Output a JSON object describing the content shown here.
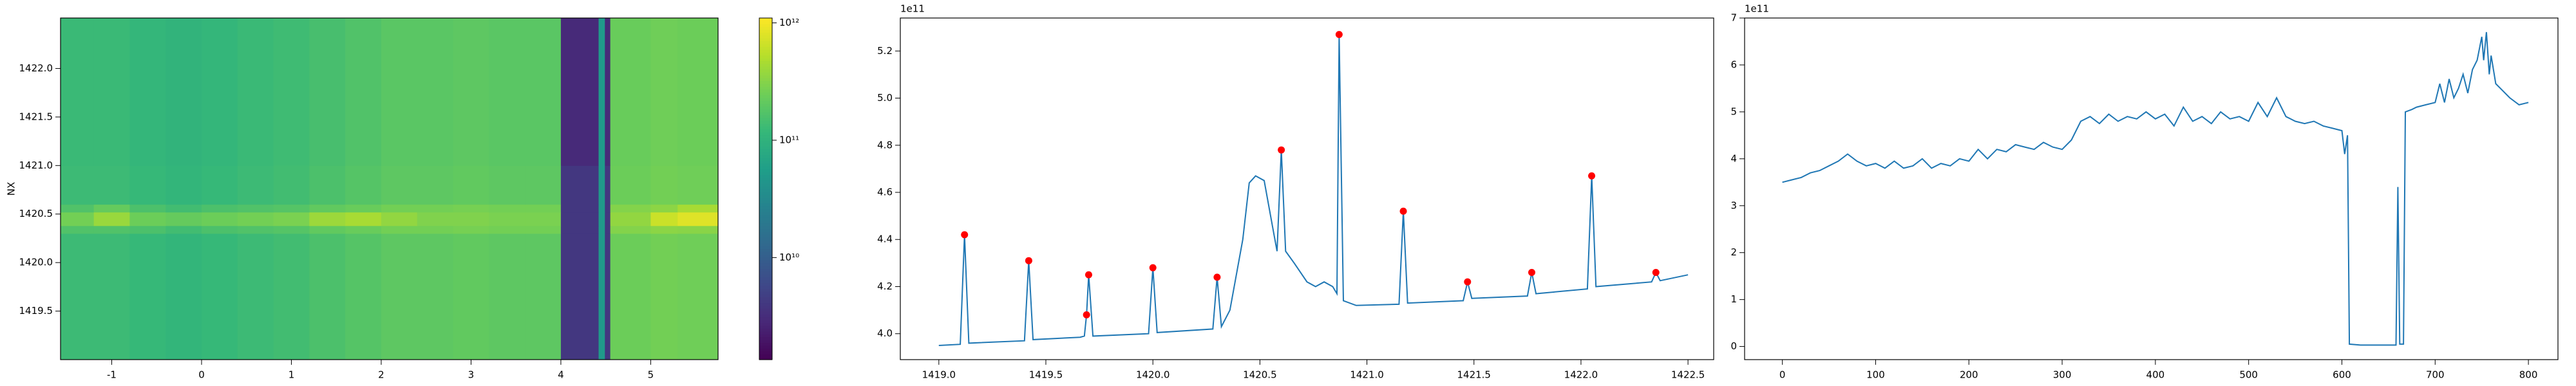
{
  "chart_data": [
    {
      "type": "heatmap",
      "ylabel": "NX",
      "x_edges": [
        -1.57,
        -1.2,
        -0.8,
        -0.4,
        0,
        0.4,
        0.8,
        1.2,
        1.6,
        2.0,
        2.4,
        2.8,
        3.2,
        3.6,
        4.0,
        4.42,
        4.49,
        4.55,
        5.0,
        5.3,
        5.75
      ],
      "y_edges": [
        1419.0,
        1420.3,
        1420.38,
        1420.52,
        1420.6,
        1421.0,
        1422.52
      ],
      "values": [
        [
          130000000000.0,
          130000000000.0,
          120000000000.0,
          110000000000.0,
          120000000000.0,
          130000000000.0,
          140000000000.0,
          160000000000.0,
          180000000000.0,
          200000000000.0,
          200000000000.0,
          210000000000.0,
          200000000000.0,
          200000000000.0,
          4000000000.0,
          50000000000.0,
          4000000000.0,
          240000000000.0,
          260000000000.0,
          250000000000.0
        ],
        [
          170000000000.0,
          170000000000.0,
          160000000000.0,
          140000000000.0,
          160000000000.0,
          170000000000.0,
          180000000000.0,
          210000000000.0,
          230000000000.0,
          260000000000.0,
          260000000000.0,
          270000000000.0,
          260000000000.0,
          260000000000.0,
          4000000000.0,
          50000000000.0,
          4000000000.0,
          310000000000.0,
          340000000000.0,
          330000000000.0
        ],
        [
          260000000000.0,
          390000000000.0,
          240000000000.0,
          220000000000.0,
          240000000000.0,
          260000000000.0,
          280000000000.0,
          400000000000.0,
          450000000000.0,
          360000000000.0,
          300000000000.0,
          300000000000.0,
          280000000000.0,
          280000000000.0,
          4000000000.0,
          50000000000.0,
          4000000000.0,
          360000000000.0,
          650000000000.0,
          800000000000.0
        ],
        [
          170000000000.0,
          220000000000.0,
          160000000000.0,
          140000000000.0,
          160000000000.0,
          170000000000.0,
          180000000000.0,
          210000000000.0,
          230000000000.0,
          260000000000.0,
          260000000000.0,
          270000000000.0,
          260000000000.0,
          260000000000.0,
          4000000000.0,
          50000000000.0,
          4000000000.0,
          310000000000.0,
          340000000000.0,
          450000000000.0
        ],
        [
          130000000000.0,
          130000000000.0,
          120000000000.0,
          110000000000.0,
          120000000000.0,
          130000000000.0,
          140000000000.0,
          160000000000.0,
          180000000000.0,
          200000000000.0,
          200000000000.0,
          210000000000.0,
          200000000000.0,
          200000000000.0,
          4000000000.0,
          50000000000.0,
          4000000000.0,
          240000000000.0,
          260000000000.0,
          250000000000.0
        ],
        [
          125000000000.0,
          125000000000.0,
          115000000000.0,
          105000000000.0,
          115000000000.0,
          125000000000.0,
          135000000000.0,
          150000000000.0,
          170000000000.0,
          190000000000.0,
          190000000000.0,
          200000000000.0,
          190000000000.0,
          190000000000.0,
          3000000000.0,
          50000000000.0,
          3000000000.0,
          230000000000.0,
          250000000000.0,
          240000000000.0
        ]
      ],
      "xlim": [
        -1.57,
        5.75
      ],
      "ylim": [
        1419.0,
        1422.52
      ],
      "xticks": [
        -1,
        0,
        1,
        2,
        3,
        4,
        5
      ],
      "yticks": [
        {
          "value": 1419.5,
          "label": "1419.5"
        },
        {
          "value": 1420,
          "label": "1420.0"
        },
        {
          "value": 1420.5,
          "label": "1420.5"
        },
        {
          "value": 1421,
          "label": "1421.0"
        },
        {
          "value": 1421.5,
          "label": "1421.5"
        },
        {
          "value": 1422,
          "label": "1422.0"
        }
      ],
      "colormap": "viridis",
      "log_scale": true,
      "clim": [
        1350000000.0,
        1100000000000.0
      ],
      "cticks": [
        {
          "value": 10000000000.0,
          "label": "10¹⁰"
        },
        {
          "value": 100000000000.0,
          "label": "10¹¹"
        },
        {
          "value": 1000000000000.0,
          "label": "10¹²"
        }
      ]
    },
    {
      "type": "line",
      "y_offset_label": "1e11",
      "color": "#1f77b4",
      "x": [
        1419.0,
        1419.1,
        1419.12,
        1419.14,
        1419.4,
        1419.42,
        1419.44,
        1419.66,
        1419.68,
        1419.69,
        1419.7,
        1419.72,
        1419.98,
        1420.0,
        1420.02,
        1420.28,
        1420.3,
        1420.32,
        1420.36,
        1420.42,
        1420.45,
        1420.48,
        1420.52,
        1420.56,
        1420.58,
        1420.6,
        1420.62,
        1420.66,
        1420.72,
        1420.76,
        1420.8,
        1420.84,
        1420.86,
        1420.87,
        1420.89,
        1420.95,
        1421.15,
        1421.17,
        1421.19,
        1421.45,
        1421.47,
        1421.49,
        1421.75,
        1421.77,
        1421.79,
        1422.03,
        1422.05,
        1422.07,
        1422.33,
        1422.35,
        1422.37,
        1422.5
      ],
      "values": [
        3.95,
        3.955,
        4.42,
        3.96,
        3.97,
        4.31,
        3.975,
        3.985,
        3.99,
        4.08,
        4.25,
        3.99,
        4.0,
        4.28,
        4.005,
        4.02,
        4.24,
        4.03,
        4.1,
        4.4,
        4.64,
        4.67,
        4.65,
        4.45,
        4.35,
        4.78,
        4.35,
        4.3,
        4.22,
        4.2,
        4.22,
        4.2,
        4.17,
        5.27,
        4.14,
        4.12,
        4.125,
        4.52,
        4.13,
        4.14,
        4.22,
        4.15,
        4.16,
        4.26,
        4.17,
        4.19,
        4.67,
        4.2,
        4.22,
        4.26,
        4.225,
        4.25
      ],
      "peaks": {
        "color": "#ff0000",
        "x": [
          1419.12,
          1419.42,
          1419.69,
          1419.7,
          1420.0,
          1420.3,
          1420.6,
          1420.87,
          1421.17,
          1421.47,
          1421.77,
          1422.05,
          1422.35
        ],
        "values": [
          4.42,
          4.31,
          4.08,
          4.25,
          4.28,
          4.24,
          4.78,
          5.27,
          4.52,
          4.22,
          4.26,
          4.67,
          4.26
        ]
      },
      "xlim": [
        1418.82,
        1422.62
      ],
      "ylim": [
        3.89,
        5.34
      ],
      "xticks": [
        {
          "value": 1419,
          "label": "1419.0"
        },
        {
          "value": 1419.5,
          "label": "1419.5"
        },
        {
          "value": 1420,
          "label": "1420.0"
        },
        {
          "value": 1420.5,
          "label": "1420.5"
        },
        {
          "value": 1421,
          "label": "1421.0"
        },
        {
          "value": 1421.5,
          "label": "1421.5"
        },
        {
          "value": 1422,
          "label": "1422.0"
        },
        {
          "value": 1422.5,
          "label": "1422.5"
        }
      ],
      "yticks": [
        {
          "value": 4,
          "label": "4.0"
        },
        {
          "value": 4.2,
          "label": "4.2"
        },
        {
          "value": 4.4,
          "label": "4.4"
        },
        {
          "value": 4.6,
          "label": "4.6"
        },
        {
          "value": 4.8,
          "label": "4.8"
        },
        {
          "value": 5,
          "label": "5.0"
        },
        {
          "value": 5.2,
          "label": "5.2"
        }
      ]
    },
    {
      "type": "line",
      "y_offset_label": "1e11",
      "color": "#1f77b4",
      "x": [
        0,
        10,
        20,
        30,
        40,
        50,
        60,
        70,
        80,
        90,
        100,
        110,
        120,
        130,
        140,
        150,
        160,
        170,
        180,
        190,
        200,
        210,
        220,
        230,
        240,
        250,
        260,
        270,
        280,
        290,
        300,
        310,
        320,
        330,
        340,
        350,
        360,
        370,
        380,
        390,
        400,
        410,
        420,
        430,
        440,
        450,
        460,
        470,
        480,
        490,
        500,
        510,
        520,
        530,
        540,
        550,
        560,
        570,
        580,
        590,
        600,
        603,
        606,
        608,
        620,
        640,
        658,
        660,
        662,
        666,
        668,
        675,
        680,
        690,
        700,
        705,
        710,
        715,
        720,
        725,
        730,
        735,
        740,
        745,
        750,
        752,
        755,
        758,
        760,
        765,
        770,
        780,
        790,
        800
      ],
      "values": [
        3.5,
        3.55,
        3.6,
        3.7,
        3.75,
        3.85,
        3.95,
        4.1,
        3.95,
        3.85,
        3.9,
        3.8,
        3.95,
        3.8,
        3.85,
        4.0,
        3.8,
        3.9,
        3.85,
        4.0,
        3.95,
        4.2,
        4.0,
        4.2,
        4.15,
        4.3,
        4.25,
        4.2,
        4.35,
        4.25,
        4.2,
        4.4,
        4.8,
        4.9,
        4.75,
        4.95,
        4.8,
        4.9,
        4.85,
        5.0,
        4.85,
        4.95,
        4.7,
        5.1,
        4.8,
        4.9,
        4.75,
        5.0,
        4.85,
        4.9,
        4.8,
        5.2,
        4.9,
        5.3,
        4.9,
        4.8,
        4.75,
        4.8,
        4.7,
        4.65,
        4.6,
        4.1,
        4.5,
        0.05,
        0.03,
        0.03,
        0.03,
        3.4,
        0.05,
        0.05,
        5.0,
        5.05,
        5.1,
        5.15,
        5.2,
        5.6,
        5.2,
        5.7,
        5.3,
        5.5,
        5.8,
        5.4,
        5.9,
        6.1,
        6.6,
        6.1,
        6.7,
        5.8,
        6.2,
        5.6,
        5.5,
        5.3,
        5.15,
        5.2
      ],
      "xlim": [
        -40.5,
        831.7
      ],
      "ylim": [
        -0.28,
        7.0
      ],
      "xticks": [
        0,
        100,
        200,
        300,
        400,
        500,
        600,
        700,
        800
      ],
      "yticks": [
        0,
        1,
        2,
        3,
        4,
        5,
        6,
        7
      ]
    }
  ]
}
